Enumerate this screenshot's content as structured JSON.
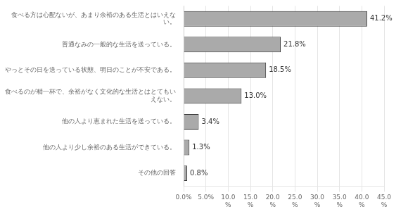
{
  "chart_data": {
    "type": "bar",
    "orientation": "horizontal",
    "categories": [
      "食べる方は心配ないが、あまり余裕のある生活とはいえな\nい。",
      "普通なみの一般的な生活を送っている。",
      "やっとその日を送っている状態、明日のことが不安である。",
      "食べるのが精一杯で、余裕がなく文化的な生活とはとてもい\nえない。",
      "他の人より恵まれた生活を送っている。",
      "他の人より少し余裕のある生活ができている。",
      "その他の回答"
    ],
    "values": [
      41.2,
      21.8,
      18.5,
      13.0,
      3.4,
      1.3,
      0.8
    ],
    "value_labels": [
      "41.2%",
      "21.8%",
      "18.5%",
      "13.0%",
      "3.4%",
      "1.3%",
      "0.8%"
    ],
    "data_labels": true,
    "color": "#aaaaaa",
    "xlim": [
      0,
      45
    ],
    "xticks": [
      {
        "value": 0,
        "label": "0.0%"
      },
      {
        "value": 5,
        "label": "5.0%"
      },
      {
        "value": 10,
        "label": "10.0\n%"
      },
      {
        "value": 15,
        "label": "15.0\n%"
      },
      {
        "value": 20,
        "label": "20.0\n%"
      },
      {
        "value": 25,
        "label": "25.0\n%"
      },
      {
        "value": 30,
        "label": "30.0\n%"
      },
      {
        "value": 35,
        "label": "35.0\n%"
      },
      {
        "value": 40,
        "label": "40.0\n%"
      },
      {
        "value": 45,
        "label": "45.0\n%"
      }
    ],
    "grid": true
  }
}
